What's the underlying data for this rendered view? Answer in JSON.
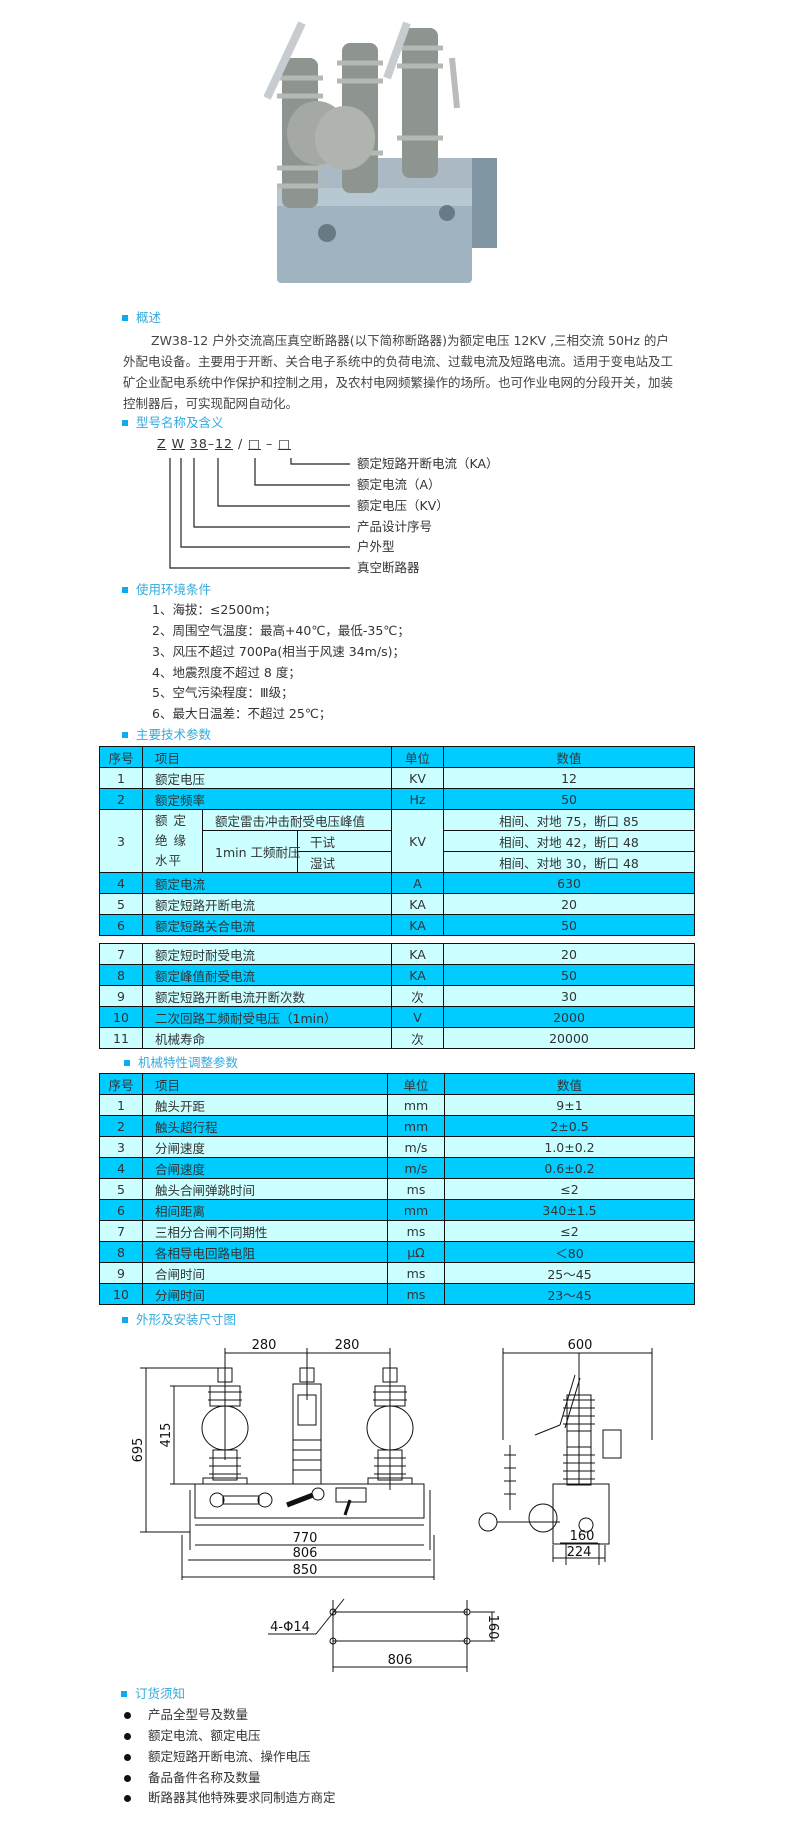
{
  "colors": {
    "header_row": "#00ccff",
    "light_row": "#ccffff",
    "section_title": "#33aadd"
  },
  "product_image": {
    "icon": "circuit-breaker-photo"
  },
  "overview": {
    "title": "概述",
    "text": "ZW38-12 户外交流高压真空断路器(以下简称断路器)为额定电压 12KV ,三相交流 50Hz 的户外配电设备。主要用于开断、关合电子系统中的负荷电流、过载电流及短路电流。适用于变电站及工矿企业配电系统中作保护和控制之用，及农村电网频繁操作的场所。也可作业电网的分段开关，加装控制器后，可实现配网自动化。"
  },
  "model": {
    "title": "型号名称及含义",
    "parts": [
      "Z",
      "W",
      "38",
      "12",
      "□",
      "□"
    ],
    "separators": [
      "–",
      "/",
      "–"
    ],
    "meanings": [
      "额定短路开断电流（KA）",
      "额定电流（A）",
      "额定电压（KV）",
      "产品设计序号",
      "户外型",
      "真空断路器"
    ]
  },
  "environment": {
    "title": "使用环境条件",
    "items": [
      "1、海拔：≤2500m；",
      "2、周围空气温度：最高+40℃，最低-35℃；",
      "3、风压不超过 700Pa(相当于风速 34m/s)；",
      "4、地震烈度不超过 8 度；",
      "5、空气污染程度：Ⅲ级；",
      "6、最大日温差：不超过 25℃；"
    ]
  },
  "tech": {
    "title": "主要技术参数",
    "headers": [
      "序号",
      "项目",
      "单位",
      "数值"
    ],
    "rows": [
      {
        "no": "1",
        "item": "额定电压",
        "unit": "KV",
        "value": "12"
      },
      {
        "no": "2",
        "item": "额定频率",
        "unit": "Hz",
        "value": "50"
      },
      {
        "no": "4",
        "item": "额定电流",
        "unit": "A",
        "value": "630"
      },
      {
        "no": "5",
        "item": "额定短路开断电流",
        "unit": "KA",
        "value": "20"
      },
      {
        "no": "6",
        "item": "额定短路关合电流",
        "unit": "KA",
        "value": "50"
      }
    ],
    "insulation": {
      "no": "3",
      "item": "额 定 绝 缘水平",
      "unit": "KV",
      "lightning": "额定雷击冲击耐受电压峰值",
      "lightning_value": "相间、对地 75，断口 85",
      "power_freq": "1min 工频耐压",
      "dry": "干试",
      "dry_value": "相间、对地 42，断口 48",
      "wet": "湿试",
      "wet_value": "相间、对地 30，断口 48"
    },
    "rows2": [
      {
        "no": "7",
        "item": "额定短时耐受电流",
        "unit": "KA",
        "value": "20"
      },
      {
        "no": "8",
        "item": "额定峰值耐受电流",
        "unit": "KA",
        "value": "50"
      },
      {
        "no": "9",
        "item": "额定短路开断电流开断次数",
        "unit": "次",
        "value": "30"
      },
      {
        "no": "10",
        "item": "二次回路工频耐受电压（1min）",
        "unit": "V",
        "value": "2000"
      },
      {
        "no": "11",
        "item": "机械寿命",
        "unit": "次",
        "value": "20000"
      }
    ]
  },
  "mech": {
    "title": "机械特性调整参数",
    "headers": [
      "序号",
      "项目",
      "单位",
      "数值"
    ],
    "rows": [
      {
        "no": "1",
        "item": "触头开距",
        "unit": "mm",
        "value": "9±1"
      },
      {
        "no": "2",
        "item": "触头超行程",
        "unit": "mm",
        "value": "2±0.5"
      },
      {
        "no": "3",
        "item": "分闸速度",
        "unit": "m/s",
        "value": "1.0±0.2"
      },
      {
        "no": "4",
        "item": "合闸速度",
        "unit": "m/s",
        "value": "0.6±0.2"
      },
      {
        "no": "5",
        "item": "触头合闸弹跳时间",
        "unit": "ms",
        "value": "≤2"
      },
      {
        "no": "6",
        "item": "相间距离",
        "unit": "mm",
        "value": "340±1.5"
      },
      {
        "no": "7",
        "item": "三相分合闸不同期性",
        "unit": "ms",
        "value": "≤2"
      },
      {
        "no": "8",
        "item": "各相导电回路电阻",
        "unit": "μΩ",
        "value": "＜80"
      },
      {
        "no": "9",
        "item": "合闸时间",
        "unit": "ms",
        "value": "25～45"
      },
      {
        "no": "10",
        "item": "分闸时间",
        "unit": "ms",
        "value": "23～45"
      }
    ]
  },
  "drawing": {
    "title": "外形及安装尺寸图",
    "dims": {
      "pitch1": "280",
      "pitch2": "280",
      "height": "695",
      "insulator": "415",
      "w770": "770",
      "w806": "806",
      "w850": "850",
      "depth": "600",
      "d160": "160",
      "d224": "224",
      "holes": "4-Φ14",
      "hole_len": "806",
      "hole_w": "160"
    }
  },
  "ordering": {
    "title": "订货须知",
    "items": [
      "产品全型号及数量",
      "额定电流、额定电压",
      "额定短路开断电流、操作电压",
      "备品备件名称及数量",
      "断路器其他特殊要求同制造方商定"
    ]
  }
}
